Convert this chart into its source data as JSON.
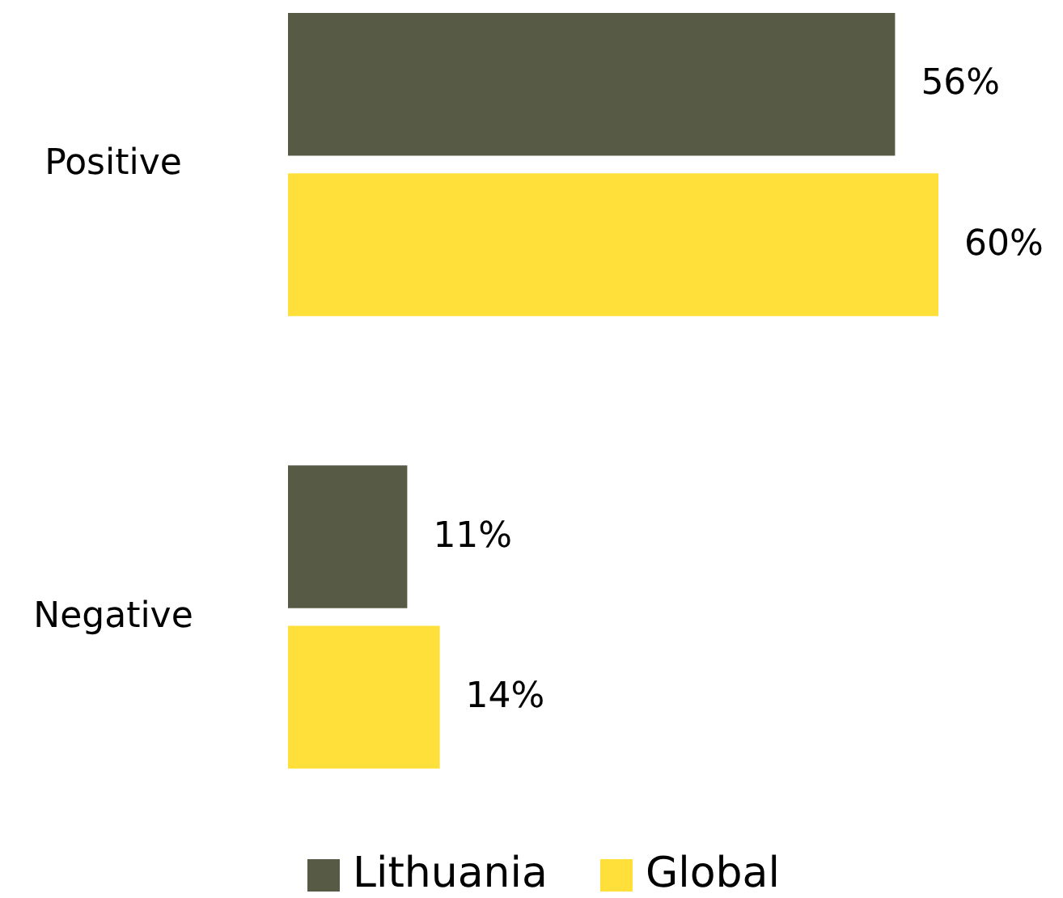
{
  "chart_data": {
    "type": "bar",
    "orientation": "horizontal",
    "categories": [
      "Positive",
      "Negative"
    ],
    "series": [
      {
        "name": "Lithuania",
        "color": "#575a44",
        "values": [
          56,
          11
        ],
        "value_labels": [
          "56%",
          "11%"
        ]
      },
      {
        "name": "Global",
        "color": "#ffe03a",
        "values": [
          60,
          14
        ],
        "value_labels": [
          "60%",
          "14%"
        ]
      }
    ],
    "legend": "bottom"
  }
}
